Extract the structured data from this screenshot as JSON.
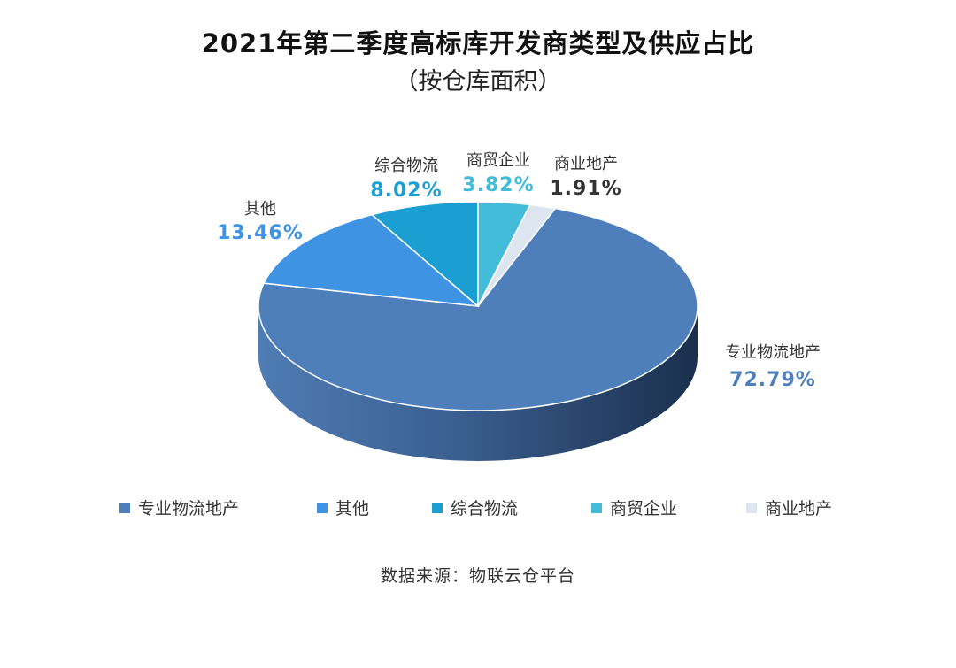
{
  "header": {
    "title": "2021年第二季度高标库开发商类型及供应占比",
    "subtitle": "（按仓库面积）"
  },
  "chart_data": {
    "type": "pie",
    "style": "3d",
    "title": "2021年第二季度高标库开发商类型及供应占比",
    "subtitle": "（按仓库面积）",
    "categories": [
      "专业物流地产",
      "其他",
      "综合物流",
      "商贸企业",
      "商业地产"
    ],
    "values": [
      72.79,
      13.46,
      8.02,
      3.82,
      1.91
    ],
    "value_labels": [
      "72.79%",
      "13.46%",
      "8.02%",
      "3.82%",
      "1.91%"
    ],
    "colors": [
      "#4e7fba",
      "#3f93e3",
      "#1b9fd3",
      "#42bcd9",
      "#dde6f0"
    ],
    "label_colors": [
      "#4e7fba",
      "#3f93e3",
      "#1b9fd3",
      "#42bcd9",
      "#333333"
    ],
    "legend_position": "bottom"
  },
  "footer": {
    "source": "数据来源：物联云仓平台"
  }
}
